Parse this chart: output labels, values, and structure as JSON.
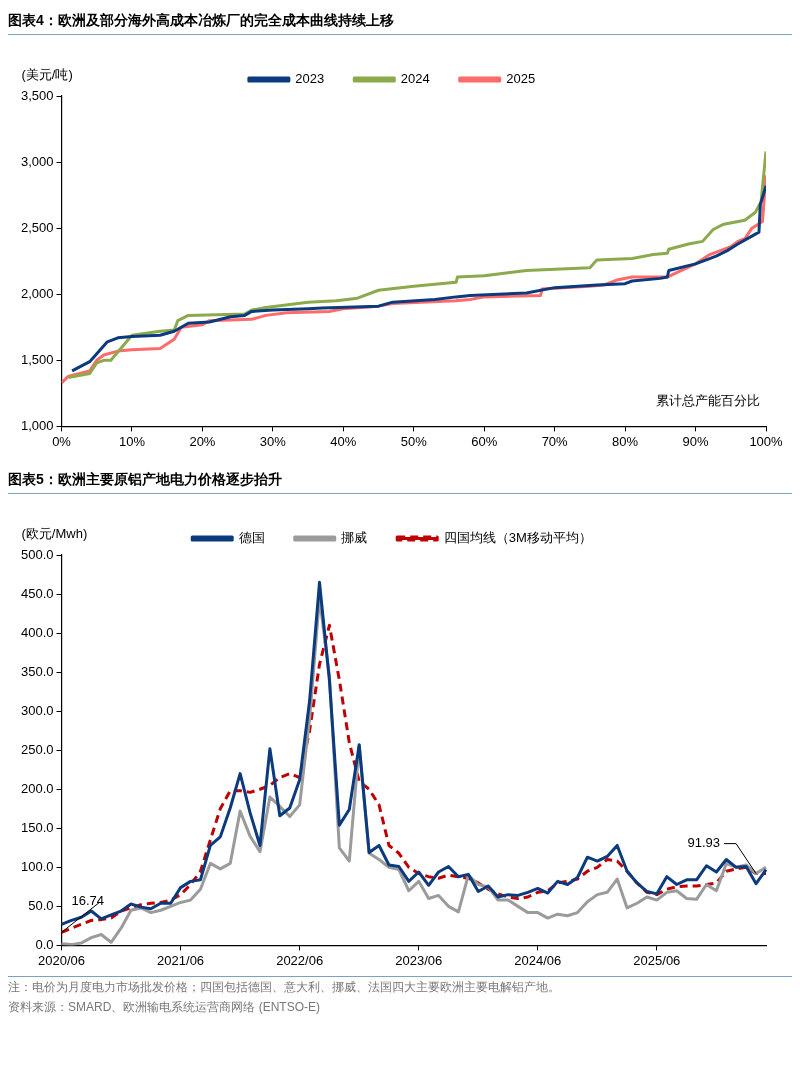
{
  "chart_data": [
    {
      "type": "line",
      "title": "图表4：欧洲及部分海外高成本冶炼厂的完全成本曲线持续上移",
      "ylabel": "(美元/吨)",
      "xlabel": "累计总产能百分比",
      "legend": "top",
      "grid": false,
      "marker": "none",
      "line_style": "solid",
      "xlim": [
        0,
        100
      ],
      "xticks": [
        {
          "value": 0,
          "label": "0%"
        },
        {
          "value": 10,
          "label": "10%"
        },
        {
          "value": 20,
          "label": "20%"
        },
        {
          "value": 30,
          "label": "30%"
        },
        {
          "value": 40,
          "label": "40%"
        },
        {
          "value": 50,
          "label": "50%"
        },
        {
          "value": 60,
          "label": "60%"
        },
        {
          "value": 70,
          "label": "70%"
        },
        {
          "value": 80,
          "label": "80%"
        },
        {
          "value": 90,
          "label": "90%"
        },
        {
          "value": 100,
          "label": "100%"
        }
      ],
      "ylim": [
        1000,
        3500
      ],
      "yticks": [
        {
          "value": 1000,
          "label": "1,000"
        },
        {
          "value": 1500,
          "label": "1,500"
        },
        {
          "value": 2000,
          "label": "2,000"
        },
        {
          "value": 2500,
          "label": "2,500"
        },
        {
          "value": 3000,
          "label": "3,000"
        },
        {
          "value": 3500,
          "label": "3,500"
        }
      ],
      "series": [
        {
          "name": "2023",
          "color": "#0b3a7e",
          "x": [
            1.5,
            4,
            6.5,
            8,
            10,
            14,
            16,
            18,
            21,
            24,
            26,
            27,
            30,
            35,
            37,
            45,
            47,
            53,
            56,
            58,
            62,
            66,
            70,
            76,
            80,
            81,
            85,
            86,
            86.2,
            90,
            92,
            93,
            94.5,
            96,
            98,
            99,
            99.2,
            100
          ],
          "values": [
            1420,
            1490,
            1640,
            1670,
            1680,
            1690,
            1720,
            1780,
            1790,
            1830,
            1840,
            1870,
            1880,
            1890,
            1895,
            1910,
            1940,
            1960,
            1980,
            1990,
            2000,
            2010,
            2050,
            2070,
            2080,
            2100,
            2120,
            2130,
            2180,
            2230,
            2270,
            2290,
            2330,
            2380,
            2440,
            2470,
            2680,
            2820
          ]
        },
        {
          "name": "2024",
          "color": "#8aaa4c",
          "x": [
            1,
            4,
            5,
            6,
            7,
            10,
            14,
            16,
            16.5,
            18,
            26,
            27,
            29,
            35,
            39,
            42,
            45,
            50,
            56,
            56.2,
            60,
            66,
            75,
            76,
            81,
            84,
            86,
            86.2,
            89,
            91,
            92.5,
            94,
            97,
            98.5,
            99.3,
            100
          ],
          "values": [
            1370,
            1400,
            1480,
            1500,
            1500,
            1690,
            1720,
            1730,
            1800,
            1840,
            1850,
            1880,
            1900,
            1940,
            1950,
            1970,
            2030,
            2060,
            2090,
            2130,
            2140,
            2180,
            2200,
            2260,
            2270,
            2300,
            2310,
            2340,
            2380,
            2400,
            2490,
            2530,
            2560,
            2620,
            2700,
            3080
          ]
        },
        {
          "name": "2025",
          "color": "#ff6b6b",
          "x": [
            0,
            1,
            4,
            5,
            6,
            8,
            10,
            14,
            16,
            17,
            20,
            21,
            27,
            29,
            32,
            38,
            40,
            45,
            47,
            56,
            58,
            60,
            68,
            68.2,
            75,
            77,
            79,
            81,
            86,
            88,
            90,
            92,
            94,
            95,
            96,
            97,
            98,
            99.5,
            100
          ],
          "values": [
            1330,
            1380,
            1420,
            1500,
            1540,
            1570,
            1580,
            1590,
            1660,
            1750,
            1770,
            1800,
            1810,
            1840,
            1860,
            1870,
            1890,
            1910,
            1930,
            1950,
            1960,
            1980,
            1990,
            2040,
            2060,
            2070,
            2110,
            2130,
            2130,
            2180,
            2230,
            2300,
            2340,
            2360,
            2400,
            2420,
            2500,
            2550,
            2900
          ]
        }
      ]
    },
    {
      "type": "line",
      "title": "图表5：欧洲主要原铝产地电力价格逐步抬升",
      "ylabel": "(欧元/Mwh)",
      "legend": "top",
      "grid": false,
      "marker": "none",
      "categories": [
        "2020/06",
        null,
        null,
        null,
        null,
        null,
        null,
        null,
        null,
        null,
        null,
        null,
        "2021/06",
        null,
        null,
        null,
        null,
        null,
        null,
        null,
        null,
        null,
        null,
        null,
        "2022/06",
        null,
        null,
        null,
        null,
        null,
        null,
        null,
        null,
        null,
        null,
        null,
        "2023/06",
        null,
        null,
        null,
        null,
        null,
        null,
        null,
        null,
        null,
        null,
        null,
        "2024/06",
        null,
        null,
        null,
        null,
        null,
        null,
        null,
        null,
        null,
        null,
        null,
        "2025/06",
        null,
        null,
        null,
        null,
        null,
        null,
        null,
        null,
        null,
        null,
        null
      ],
      "ylim": [
        0,
        500
      ],
      "yticks": [
        {
          "value": 0,
          "label": "0.0"
        },
        {
          "value": 50,
          "label": "50.0"
        },
        {
          "value": 100,
          "label": "100.0"
        },
        {
          "value": 150,
          "label": "150.0"
        },
        {
          "value": 200,
          "label": "200.0"
        },
        {
          "value": 250,
          "label": "250.0"
        },
        {
          "value": 300,
          "label": "300.0"
        },
        {
          "value": 350,
          "label": "350.0"
        },
        {
          "value": 400,
          "label": "400.0"
        },
        {
          "value": 450,
          "label": "450.0"
        },
        {
          "value": 500,
          "label": "500.0"
        }
      ],
      "series": [
        {
          "name": "德国",
          "color": "#0b3a7e",
          "line_style": "solid",
          "values": [
            27,
            32,
            36,
            44,
            34,
            39,
            44,
            53,
            49,
            47,
            54,
            54,
            74,
            82,
            84,
            128,
            139,
            176,
            220,
            170,
            128,
            252,
            166,
            176,
            212,
            313,
            465,
            339,
            154,
            174,
            257,
            119,
            128,
            103,
            101,
            82,
            94,
            77,
            94,
            101,
            88,
            91,
            69,
            76,
            62,
            65,
            64,
            68,
            73,
            67,
            82,
            78,
            87,
            113,
            108,
            114,
            128,
            95,
            80,
            69,
            66,
            88,
            78,
            84,
            84,
            102,
            94,
            110,
            100,
            101,
            79,
            97
          ]
        },
        {
          "name": "挪威",
          "color": "#9b9b9b",
          "line_style": "solid",
          "values": [
            2,
            1,
            3,
            10,
            14,
            4,
            22,
            45,
            48,
            42,
            45,
            50,
            55,
            58,
            72,
            105,
            98,
            105,
            172,
            140,
            120,
            190,
            178,
            165,
            180,
            290,
            445,
            345,
            125,
            108,
            256,
            118,
            110,
            100,
            97,
            70,
            82,
            60,
            64,
            50,
            43,
            90,
            78,
            75,
            58,
            58,
            50,
            42,
            42,
            35,
            40,
            38,
            42,
            56,
            65,
            68,
            85,
            48,
            54,
            62,
            58,
            68,
            70,
            60,
            59,
            78,
            70,
            105,
            100,
            103,
            92,
            100
          ]
        },
        {
          "name": "四国均线（3M移动平均）",
          "color": "#c00000",
          "line_style": "dashed",
          "values": [
            16.74,
            22,
            27,
            32,
            33,
            35,
            44,
            48,
            52,
            54,
            55,
            58,
            65,
            78,
            95,
            135,
            175,
            198,
            198,
            196,
            200,
            205,
            215,
            220,
            215,
            275,
            360,
            410,
            340,
            260,
            210,
            200,
            180,
            128,
            118,
            100,
            92,
            88,
            86,
            90,
            88,
            86,
            80,
            72,
            66,
            62,
            60,
            62,
            68,
            70,
            80,
            82,
            85,
            95,
            100,
            110,
            108,
            95,
            80,
            68,
            65,
            72,
            75,
            76,
            76,
            78,
            80,
            95,
            98,
            100,
            91.93,
            92
          ]
        }
      ],
      "annotations": [
        {
          "text": "16.74",
          "x": "2020/06",
          "y": 16.74
        },
        {
          "text": "91.93",
          "y": 91.93
        },
        "注：电价为月度电力市场批发价格；四国包括德国、意大利、挪威、法国四大主要欧洲主要电解铝产地。",
        "资料来源：SMARD、欧洲输电系统运营商网络 (ENTSO-E)"
      ]
    }
  ]
}
